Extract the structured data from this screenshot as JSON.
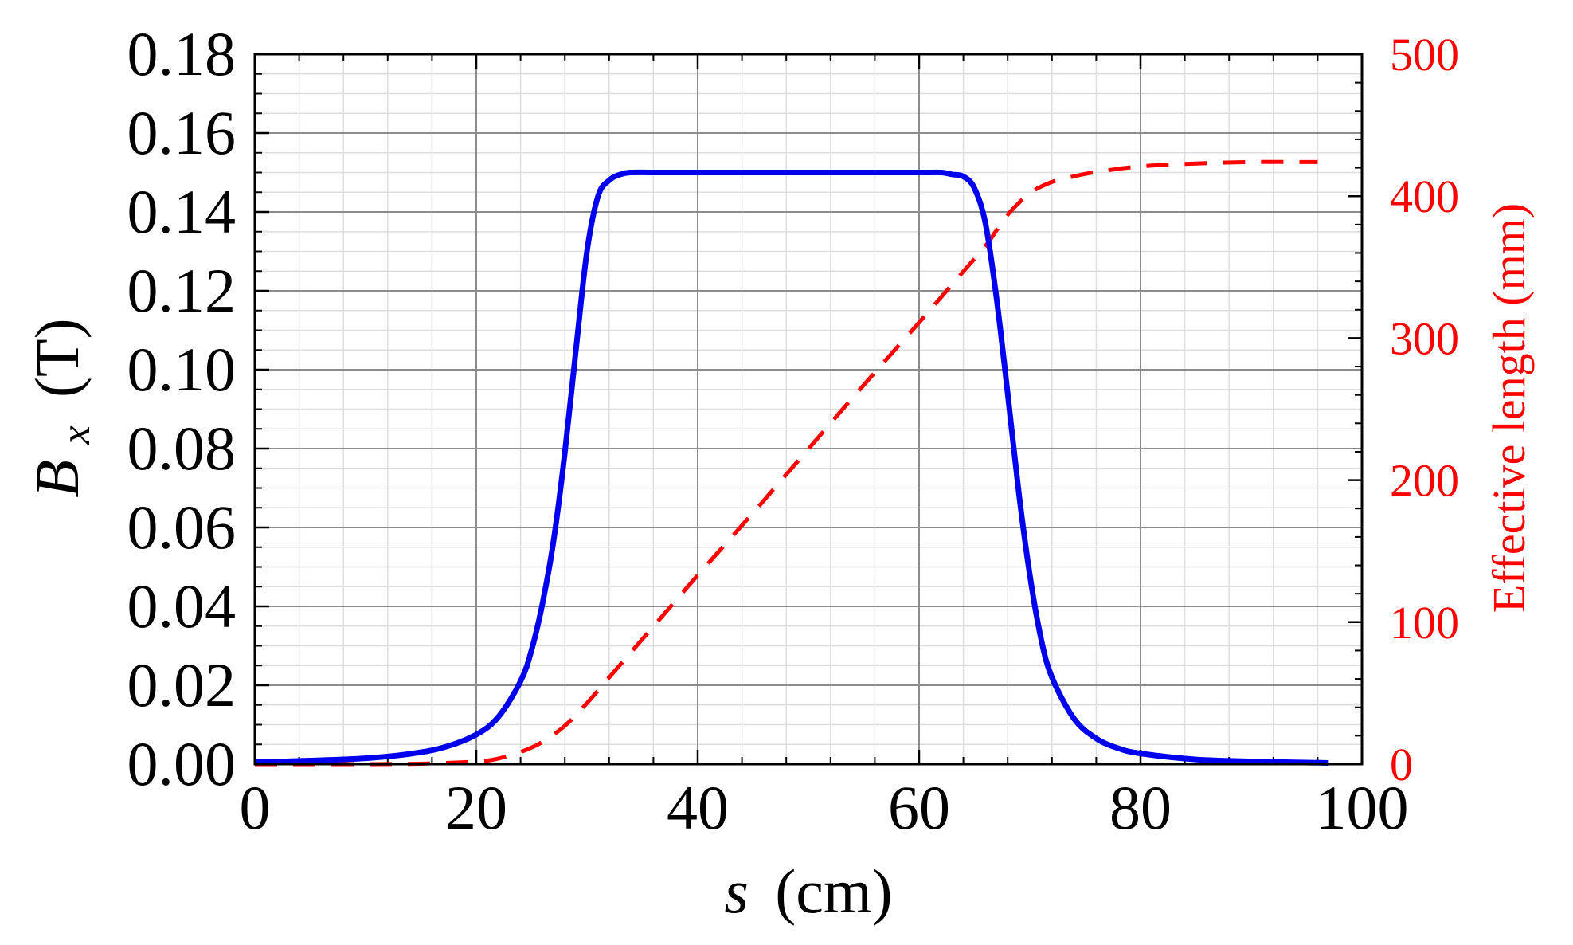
{
  "chart_data": {
    "type": "line",
    "xlabel": {
      "symbol": "s",
      "unit": "(cm)"
    },
    "ylabel": {
      "symbol": "B",
      "subscript": "x",
      "unit": "(T)"
    },
    "y2label": "Effective length (mm)",
    "xlim": [
      0,
      100
    ],
    "ylim": [
      0,
      0.18
    ],
    "y2lim": [
      0,
      500
    ],
    "x_ticks": [
      "0",
      "20",
      "40",
      "60",
      "80",
      "100"
    ],
    "y_ticks": [
      "0.00",
      "0.02",
      "0.04",
      "0.06",
      "0.08",
      "0.10",
      "0.12",
      "0.14",
      "0.16",
      "0.18"
    ],
    "y2_ticks": [
      "0",
      "100",
      "200",
      "300",
      "400",
      "500"
    ],
    "grid": true,
    "series": [
      {
        "axis": "left",
        "style": "solid",
        "color": "#0000ee",
        "x": [
          0,
          5,
          10,
          14,
          17,
          20,
          22,
          24,
          25,
          26,
          27,
          28,
          29,
          30,
          31,
          32,
          33,
          34,
          36,
          40,
          50,
          60,
          62,
          63,
          64,
          65,
          66,
          67,
          68,
          69,
          70,
          71,
          72,
          74,
          76,
          78,
          80,
          85,
          90,
          97
        ],
        "y": [
          0.0005,
          0.0009,
          0.0015,
          0.0026,
          0.0042,
          0.0075,
          0.012,
          0.021,
          0.029,
          0.041,
          0.057,
          0.079,
          0.105,
          0.13,
          0.144,
          0.148,
          0.1495,
          0.15,
          0.15,
          0.15,
          0.15,
          0.15,
          0.15,
          0.1495,
          0.149,
          0.146,
          0.137,
          0.118,
          0.094,
          0.069,
          0.048,
          0.032,
          0.022,
          0.0115,
          0.0065,
          0.004,
          0.0027,
          0.0012,
          0.0007,
          0.0003
        ]
      },
      {
        "axis": "right",
        "style": "dashed",
        "color": "#ff0000",
        "x": [
          0,
          10,
          15,
          20,
          22,
          24,
          26,
          28,
          30,
          32,
          34,
          36,
          38,
          40,
          45,
          50,
          55,
          60,
          62,
          64,
          66,
          67,
          68,
          70,
          72,
          74,
          76,
          80,
          85,
          90,
          95,
          96
        ],
        "y": [
          0,
          0,
          0.3,
          1.8,
          4,
          8.5,
          15.7,
          27,
          43,
          61,
          79,
          97,
          115,
          133,
          177,
          222,
          267,
          311,
          329,
          347,
          365,
          376,
          387,
          402,
          410,
          414,
          417,
          421,
          423,
          424,
          424,
          424
        ]
      }
    ]
  }
}
